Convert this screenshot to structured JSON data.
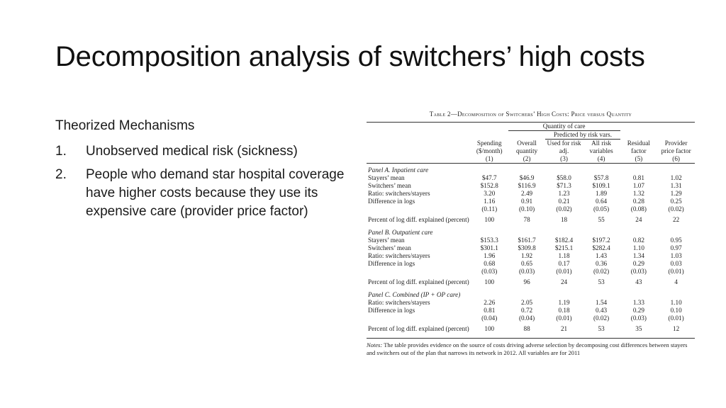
{
  "title": "Decomposition analysis of switchers’ high costs",
  "mechanisms": {
    "heading": "Theorized Mechanisms",
    "items": [
      {
        "num": "1.",
        "text": "Unobserved medical risk (sickness)"
      },
      {
        "num": "2.",
        "text": "People who demand star hospital coverage have higher costs because they use its expensive care (provider price factor)"
      }
    ]
  },
  "table": {
    "caption": "Table 2—Decomposition of Switchers’ High Costs: Price versus Quantity",
    "group_header": "Quantity of care",
    "sub_group_header": "Predicted by risk vars.",
    "columns": [
      {
        "label": "Spending ($/month)",
        "num": "(1)"
      },
      {
        "label": "Overall quantity",
        "num": "(2)"
      },
      {
        "label": "Used for risk adj.",
        "num": "(3)"
      },
      {
        "label": "All risk variables",
        "num": "(4)"
      },
      {
        "label": "Residual factor",
        "num": "(5)"
      },
      {
        "label": "Provider price factor",
        "num": "(6)"
      }
    ],
    "panels": [
      {
        "title": "Panel A. Inpatient care",
        "rows": [
          {
            "label": "Stayers’ mean",
            "values": [
              "$47.7",
              "$46.9",
              "$58.0",
              "$57.8",
              "0.81",
              "1.02"
            ]
          },
          {
            "label": "Switchers’ mean",
            "values": [
              "$152.8",
              "$116.9",
              "$71.3",
              "$109.1",
              "1.07",
              "1.31"
            ]
          },
          {
            "label": "Ratio: switchers/stayers",
            "values": [
              "3.20",
              "2.49",
              "1.23",
              "1.89",
              "1.32",
              "1.29"
            ]
          },
          {
            "label": "Difference in logs",
            "values": [
              "1.16",
              "0.91",
              "0.21",
              "0.64",
              "0.28",
              "0.25"
            ]
          },
          {
            "label": "",
            "values": [
              "(0.11)",
              "(0.10)",
              "(0.02)",
              "(0.05)",
              "(0.08)",
              "(0.02)"
            ]
          }
        ],
        "pct": {
          "label": "Percent of log diff. explained (percent)",
          "values": [
            "100",
            "78",
            "18",
            "55",
            "24",
            "22"
          ]
        }
      },
      {
        "title": "Panel B. Outpatient care",
        "rows": [
          {
            "label": "Stayers’ mean",
            "values": [
              "$153.3",
              "$161.7",
              "$182.4",
              "$197.2",
              "0.82",
              "0.95"
            ]
          },
          {
            "label": "Switchers’ mean",
            "values": [
              "$301.1",
              "$309.8",
              "$215.1",
              "$282.4",
              "1.10",
              "0.97"
            ]
          },
          {
            "label": "Ratio: switchers/stayers",
            "values": [
              "1.96",
              "1.92",
              "1.18",
              "1.43",
              "1.34",
              "1.03"
            ]
          },
          {
            "label": "Difference in logs",
            "values": [
              "0.68",
              "0.65",
              "0.17",
              "0.36",
              "0.29",
              "0.03"
            ]
          },
          {
            "label": "",
            "values": [
              "(0.03)",
              "(0.03)",
              "(0.01)",
              "(0.02)",
              "(0.03)",
              "(0.01)"
            ]
          }
        ],
        "pct": {
          "label": "Percent of log diff. explained (percent)",
          "values": [
            "100",
            "96",
            "24",
            "53",
            "43",
            "4"
          ]
        }
      },
      {
        "title": "Panel C. Combined (IP + OP care)",
        "rows": [
          {
            "label": "Ratio: switchers/stayers",
            "values": [
              "2.26",
              "2.05",
              "1.19",
              "1.54",
              "1.33",
              "1.10"
            ]
          },
          {
            "label": "Difference in logs",
            "values": [
              "0.81",
              "0.72",
              "0.18",
              "0.43",
              "0.29",
              "0.10"
            ]
          },
          {
            "label": "",
            "values": [
              "(0.04)",
              "(0.04)",
              "(0.01)",
              "(0.02)",
              "(0.03)",
              "(0.01)"
            ]
          }
        ],
        "pct": {
          "label": "Percent of log diff. explained (percent)",
          "values": [
            "100",
            "88",
            "21",
            "53",
            "35",
            "12"
          ]
        }
      }
    ],
    "notes_label": "Notes:",
    "notes_text": "The table provides evidence on the source of costs driving adverse selection by decomposing cost differences between stayers and switchers out of the plan that narrows its network in 2012. All variables are for 2011"
  }
}
